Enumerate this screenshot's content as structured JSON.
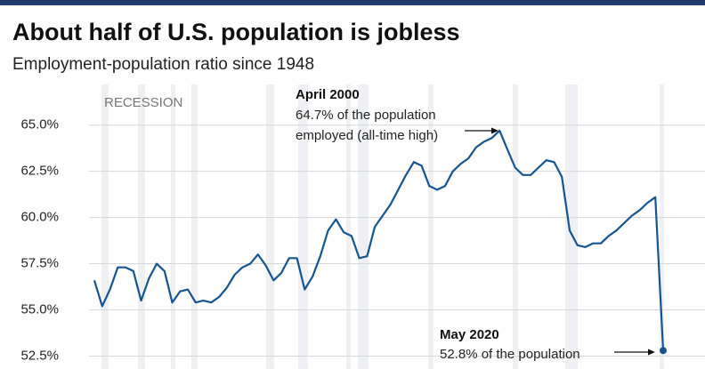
{
  "chart_data": {
    "type": "line",
    "title": "About half of U.S. population is jobless",
    "subtitle": "Employment-population ratio since 1948",
    "recession_label": "RECESSION",
    "annotations": [
      {
        "title": "April 2000",
        "lines": [
          "64.7% of the population",
          "employed (all-time high)"
        ]
      },
      {
        "title": "May 2020",
        "lines": [
          "52.8% of the population"
        ]
      }
    ],
    "categories": [
      null,
      null,
      null,
      null,
      null,
      null,
      null,
      null,
      null,
      null,
      null,
      null,
      null,
      null,
      null,
      null,
      null,
      null,
      null,
      null,
      null,
      null,
      null,
      null,
      null,
      null,
      null,
      null,
      null,
      null,
      null,
      null,
      null,
      null,
      null,
      null,
      null,
      null,
      null,
      null,
      null,
      null,
      null,
      null,
      null,
      null,
      null,
      null,
      null,
      null,
      null,
      null,
      null,
      null,
      null,
      null,
      null,
      null,
      null,
      null,
      null,
      null,
      null,
      null,
      null,
      null,
      null,
      null,
      null,
      null,
      null,
      null,
      null,
      null
    ],
    "series": [
      {
        "color": "#14558f",
        "values": [
          56.6,
          55.2,
          56.1,
          57.3,
          57.3,
          57.1,
          55.5,
          56.7,
          57.5,
          57.1,
          55.4,
          56.0,
          56.1,
          55.4,
          55.5,
          55.4,
          55.7,
          56.2,
          56.9,
          57.3,
          57.5,
          58.0,
          57.4,
          56.6,
          57.0,
          57.8,
          57.8,
          56.1,
          56.8,
          57.9,
          59.3,
          59.9,
          59.2,
          59.0,
          57.8,
          57.9,
          59.5,
          60.1,
          60.7,
          61.5,
          62.3,
          63.0,
          62.8,
          61.7,
          61.5,
          61.7,
          62.5,
          62.9,
          63.2,
          63.8,
          64.1,
          64.3,
          64.7,
          63.7,
          62.7,
          62.3,
          62.3,
          62.7,
          63.1,
          63.0,
          62.2,
          59.3,
          58.5,
          58.4,
          58.6,
          58.6,
          59.0,
          59.3,
          59.7,
          60.1,
          60.4,
          60.8,
          61.1,
          52.8
        ]
      }
    ],
    "ylim": [
      51.8,
      67.2
    ],
    "yticks": [
      {
        "value": 52.5,
        "label": "52.5%"
      },
      {
        "value": 55,
        "label": "55.0%"
      },
      {
        "value": 57.5,
        "label": "57.5%"
      },
      {
        "value": 60,
        "label": "60.0%"
      },
      {
        "value": 62.5,
        "label": "62.5%"
      },
      {
        "value": 65,
        "label": "65.0%"
      }
    ],
    "grid": true
  }
}
